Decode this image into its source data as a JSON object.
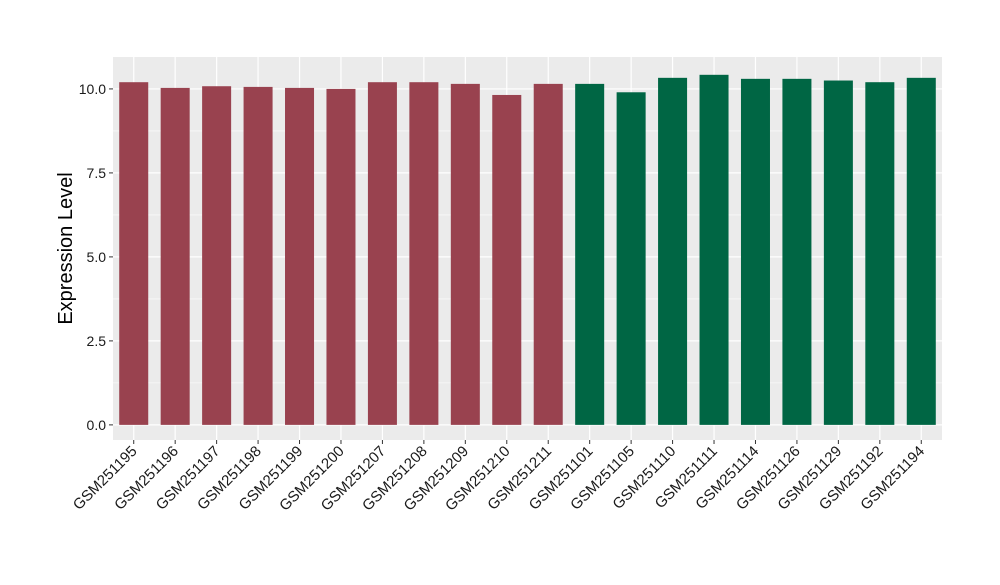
{
  "chart_data": {
    "type": "bar",
    "title": "",
    "xlabel": "",
    "ylabel": "Expression Level",
    "ylim": [
      -0.45,
      10.95
    ],
    "yticks": [
      0.0,
      2.5,
      5.0,
      7.5,
      10.0
    ],
    "ytick_labels": [
      "0.0",
      "2.5",
      "5.0",
      "7.5",
      "10.0"
    ],
    "grid": true,
    "legend": "none",
    "categories": [
      "GSM251195",
      "GSM251196",
      "GSM251197",
      "GSM251198",
      "GSM251199",
      "GSM251200",
      "GSM251207",
      "GSM251208",
      "GSM251209",
      "GSM251210",
      "GSM251211",
      "GSM251101",
      "GSM251105",
      "GSM251110",
      "GSM251111",
      "GSM251114",
      "GSM251126",
      "GSM251129",
      "GSM251192",
      "GSM251194"
    ],
    "values": [
      10.2,
      10.03,
      10.08,
      10.06,
      10.03,
      10.0,
      10.2,
      10.2,
      10.15,
      9.82,
      10.15,
      10.15,
      9.9,
      10.33,
      10.42,
      10.3,
      10.3,
      10.25,
      10.2,
      10.33
    ],
    "bar_colors": [
      "#99424f",
      "#99424f",
      "#99424f",
      "#99424f",
      "#99424f",
      "#99424f",
      "#99424f",
      "#99424f",
      "#99424f",
      "#99424f",
      "#99424f",
      "#006644",
      "#006644",
      "#006644",
      "#006644",
      "#006644",
      "#006644",
      "#006644",
      "#006644",
      "#006644"
    ],
    "colors": {
      "panel_background": "#ebebeb",
      "grid": "#ffffff",
      "group_a": "#99424f",
      "group_b": "#006644"
    }
  }
}
